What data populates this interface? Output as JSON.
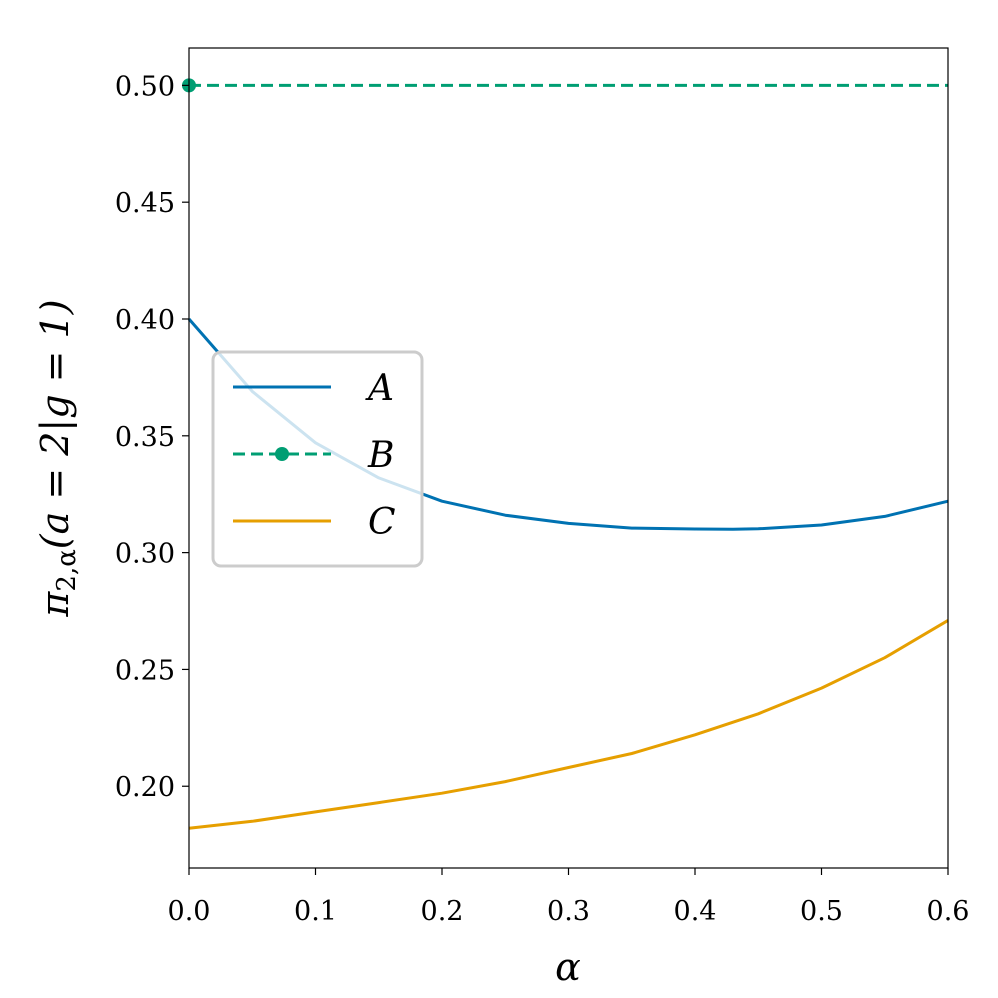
{
  "chart_data": {
    "type": "line",
    "title": "",
    "xlabel": "α",
    "ylabel": {
      "base": "π",
      "subscript": "2,α",
      "rest": "(a = 2|g = 1)"
    },
    "xlim": [
      0.0,
      0.6
    ],
    "ylim": [
      0.165,
      0.516
    ],
    "xticks": [
      0.0,
      0.1,
      0.2,
      0.3,
      0.4,
      0.5,
      0.6
    ],
    "xtick_labels": [
      "0.0",
      "0.1",
      "0.2",
      "0.3",
      "0.4",
      "0.5",
      "0.6"
    ],
    "yticks": [
      0.2,
      0.25,
      0.3,
      0.35,
      0.4,
      0.45,
      0.5
    ],
    "ytick_labels": [
      "0.20",
      "0.25",
      "0.30",
      "0.35",
      "0.40",
      "0.45",
      "0.50"
    ],
    "grid": false,
    "legend_position": "center-left",
    "series": [
      {
        "name": "A",
        "color": "#0072b2",
        "style": "solid",
        "x": [
          0.0,
          0.05,
          0.1,
          0.15,
          0.2,
          0.25,
          0.3,
          0.35,
          0.4,
          0.43,
          0.45,
          0.5,
          0.55,
          0.6
        ],
        "y": [
          0.4,
          0.369,
          0.347,
          0.332,
          0.322,
          0.316,
          0.3125,
          0.3105,
          0.3101,
          0.31,
          0.3102,
          0.3118,
          0.3155,
          0.322
        ]
      },
      {
        "name": "B",
        "color": "#009e73",
        "style": "dashed",
        "marker": "circle",
        "marker_x": [
          0.0
        ],
        "x": [
          0.0,
          0.6
        ],
        "y": [
          0.5,
          0.5
        ]
      },
      {
        "name": "C",
        "color": "#e69f00",
        "style": "solid",
        "x": [
          0.0,
          0.05,
          0.1,
          0.15,
          0.2,
          0.25,
          0.3,
          0.35,
          0.4,
          0.45,
          0.5,
          0.55,
          0.6
        ],
        "y": [
          0.182,
          0.185,
          0.189,
          0.193,
          0.197,
          0.202,
          0.208,
          0.214,
          0.222,
          0.231,
          0.242,
          0.255,
          0.271
        ]
      }
    ]
  }
}
